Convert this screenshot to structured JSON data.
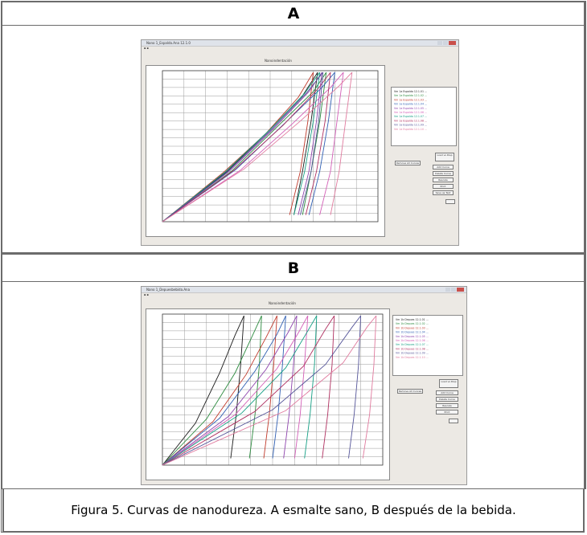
{
  "panel_a": {
    "label": "A",
    "window_title": "Nano 1_Espalda.Ana 12.1.0",
    "chart_title": "Nanoindentación",
    "legend_entries": [
      "Vm 1a Espalda 12.1.01 ...",
      "Vm 1a Espalda 12.1.02 ...",
      "Vm 1a Espalda 12.1.03 ...",
      "Vm 1a Espalda 12.1.04 ...",
      "Vm 1a Espalda 12.1.05 ...",
      "Vm 1a Espalda 12.1.06 ...",
      "Vm 1a Espalda 12.1.07 ...",
      "Vm 1a Espalda 12.1.08 ...",
      "Vm 1a Espalda 12.1.09 ...",
      "Vm 1a Espalda 12.1.10 ..."
    ],
    "buttons": [
      "Remove All Curves",
      "Add Curve",
      "Delete Curve",
      "Rescale",
      "Print",
      "Save as Text"
    ],
    "select_label": "Load vs Disp"
  },
  "panel_b": {
    "label": "B",
    "window_title": "Nano 1_Depuesbebida.Ana",
    "chart_title": "Nanoindentación",
    "legend_entries": [
      "Vm 1b Depues 12.1.01 ...",
      "Vm 1b Depues 12.1.02 ...",
      "Vm 1b Depues 12.1.03 ...",
      "Vm 1b Depues 12.1.04 ...",
      "Vm 1b Depues 12.1.05 ...",
      "Vm 1b Depues 12.1.06 ...",
      "Vm 1b Depues 12.1.07 ...",
      "Vm 1b Depues 12.1.08 ...",
      "Vm 1b Depues 12.1.09 ...",
      "Vm 1b Depues 12.1.10 ..."
    ],
    "buttons": [
      "Remove All Curves",
      "Add Curve",
      "Delete Curve",
      "Rescale",
      "Print"
    ],
    "select_label": "Load vs Disp"
  },
  "caption": "Figura 5. Curvas de nanodureza. A esmalte sano, B después de la bebida.",
  "colors": {
    "curve_colors": [
      "#1a1a1a",
      "#2b8a3e",
      "#c0392b",
      "#2f5fb3",
      "#8e44ad",
      "#d35fb7",
      "#16a085",
      "#b03060",
      "#555599",
      "#e07a9e"
    ]
  },
  "chart_data": [
    {
      "type": "line",
      "panel": "A",
      "xlim": [
        0,
        1000
      ],
      "ylim": [
        0,
        18000
      ],
      "series": [
        {
          "loading": [
            [
              0,
              0
            ],
            [
              300,
              6000
            ],
            [
              500,
              11000
            ],
            [
              650,
              15000
            ],
            [
              720,
              17800
            ]
          ],
          "unloading": [
            [
              720,
              17800
            ],
            [
              690,
              12000
            ],
            [
              650,
              6000
            ],
            [
              610,
              800
            ]
          ]
        },
        {
          "loading": [
            [
              0,
              0
            ],
            [
              320,
              6000
            ],
            [
              540,
              11500
            ],
            [
              700,
              15500
            ],
            [
              760,
              17800
            ]
          ],
          "unloading": [
            [
              760,
              17800
            ],
            [
              730,
              12000
            ],
            [
              690,
              6000
            ],
            [
              650,
              800
            ]
          ]
        },
        {
          "loading": [
            [
              0,
              0
            ],
            [
              280,
              5800
            ],
            [
              480,
              10500
            ],
            [
              630,
              14800
            ],
            [
              700,
              17800
            ]
          ],
          "unloading": [
            [
              700,
              17800
            ],
            [
              675,
              12000
            ],
            [
              640,
              6000
            ],
            [
              590,
              800
            ]
          ]
        },
        {
          "loading": [
            [
              0,
              0
            ],
            [
              340,
              6200
            ],
            [
              570,
              11800
            ],
            [
              740,
              16000
            ],
            [
              800,
              17800
            ]
          ],
          "unloading": [
            [
              800,
              17800
            ],
            [
              770,
              12000
            ],
            [
              730,
              6000
            ],
            [
              680,
              800
            ]
          ]
        },
        {
          "loading": [
            [
              0,
              0
            ],
            [
              310,
              6000
            ],
            [
              520,
              11200
            ],
            [
              680,
              15500
            ],
            [
              740,
              17800
            ]
          ],
          "unloading": [
            [
              740,
              17800
            ],
            [
              715,
              12000
            ],
            [
              680,
              6000
            ],
            [
              630,
              800
            ]
          ]
        },
        {
          "loading": [
            [
              0,
              0
            ],
            [
              360,
              6100
            ],
            [
              600,
              11600
            ],
            [
              780,
              16000
            ],
            [
              840,
              17800
            ]
          ],
          "unloading": [
            [
              840,
              17800
            ],
            [
              810,
              12000
            ],
            [
              780,
              6000
            ],
            [
              730,
              800
            ]
          ]
        },
        {
          "loading": [
            [
              0,
              0
            ],
            [
              290,
              5900
            ],
            [
              500,
              11000
            ],
            [
              660,
              15300
            ],
            [
              730,
              17800
            ]
          ],
          "unloading": [
            [
              730,
              17800
            ],
            [
              700,
              12000
            ],
            [
              660,
              6000
            ],
            [
              610,
              800
            ]
          ]
        },
        {
          "loading": [
            [
              0,
              0
            ],
            [
              330,
              6100
            ],
            [
              560,
              11500
            ],
            [
              720,
              15800
            ],
            [
              780,
              17800
            ]
          ],
          "unloading": [
            [
              780,
              17800
            ],
            [
              755,
              12000
            ],
            [
              715,
              6000
            ],
            [
              665,
              800
            ]
          ]
        },
        {
          "loading": [
            [
              0,
              0
            ],
            [
              300,
              5900
            ],
            [
              510,
              11100
            ],
            [
              670,
              15400
            ],
            [
              745,
              17800
            ]
          ],
          "unloading": [
            [
              745,
              17800
            ],
            [
              725,
              12000
            ],
            [
              690,
              6000
            ],
            [
              640,
              800
            ]
          ]
        },
        {
          "loading": [
            [
              0,
              0
            ],
            [
              380,
              6300
            ],
            [
              640,
              12000
            ],
            [
              820,
              16200
            ],
            [
              880,
              17800
            ]
          ],
          "unloading": [
            [
              880,
              17800
            ],
            [
              850,
              12000
            ],
            [
              820,
              6000
            ],
            [
              780,
              800
            ]
          ]
        }
      ]
    },
    {
      "type": "line",
      "panel": "B",
      "xlim": [
        0,
        1000
      ],
      "ylim": [
        0,
        18000
      ],
      "series": [
        {
          "loading": [
            [
              0,
              0
            ],
            [
              150,
              5000
            ],
            [
              260,
              11000
            ],
            [
              330,
              15500
            ],
            [
              370,
              17800
            ]
          ],
          "unloading": [
            [
              370,
              17800
            ],
            [
              355,
              12000
            ],
            [
              335,
              6000
            ],
            [
              310,
              800
            ]
          ]
        },
        {
          "loading": [
            [
              0,
              0
            ],
            [
              200,
              5500
            ],
            [
              330,
              11000
            ],
            [
              410,
              15500
            ],
            [
              450,
              17800
            ]
          ],
          "unloading": [
            [
              450,
              17800
            ],
            [
              440,
              12000
            ],
            [
              420,
              6000
            ],
            [
              395,
              800
            ]
          ]
        },
        {
          "loading": [
            [
              0,
              0
            ],
            [
              230,
              5200
            ],
            [
              380,
              10800
            ],
            [
              470,
              15200
            ],
            [
              520,
              17800
            ]
          ],
          "unloading": [
            [
              520,
              17800
            ],
            [
              505,
              12000
            ],
            [
              485,
              6000
            ],
            [
              460,
              800
            ]
          ]
        },
        {
          "loading": [
            [
              0,
              0
            ],
            [
              260,
              5600
            ],
            [
              420,
              11200
            ],
            [
              520,
              15600
            ],
            [
              560,
              17800
            ]
          ],
          "unloading": [
            [
              560,
              17800
            ],
            [
              545,
              12000
            ],
            [
              525,
              6000
            ],
            [
              500,
              800
            ]
          ]
        },
        {
          "loading": [
            [
              0,
              0
            ],
            [
              300,
              5800
            ],
            [
              470,
              11400
            ],
            [
              570,
              15800
            ],
            [
              610,
              17800
            ]
          ],
          "unloading": [
            [
              610,
              17800
            ],
            [
              595,
              12000
            ],
            [
              575,
              6000
            ],
            [
              550,
              800
            ]
          ]
        },
        {
          "loading": [
            [
              0,
              0
            ],
            [
              330,
              6000
            ],
            [
              520,
              11500
            ],
            [
              620,
              15900
            ],
            [
              660,
              17800
            ]
          ],
          "unloading": [
            [
              660,
              17800
            ],
            [
              645,
              12000
            ],
            [
              625,
              6000
            ],
            [
              600,
              800
            ]
          ]
        },
        {
          "loading": [
            [
              0,
              0
            ],
            [
              360,
              6200
            ],
            [
              560,
              11600
            ],
            [
              660,
              16000
            ],
            [
              700,
              17800
            ]
          ],
          "unloading": [
            [
              700,
              17800
            ],
            [
              690,
              12000
            ],
            [
              670,
              6000
            ],
            [
              645,
              800
            ]
          ]
        },
        {
          "loading": [
            [
              0,
              0
            ],
            [
              420,
              6400
            ],
            [
              640,
              11800
            ],
            [
              740,
              16200
            ],
            [
              780,
              17800
            ]
          ],
          "unloading": [
            [
              780,
              17800
            ],
            [
              770,
              12000
            ],
            [
              750,
              6000
            ],
            [
              725,
              800
            ]
          ]
        },
        {
          "loading": [
            [
              0,
              0
            ],
            [
              500,
              6600
            ],
            [
              740,
              12000
            ],
            [
              860,
              16400
            ],
            [
              900,
              17800
            ]
          ],
          "unloading": [
            [
              900,
              17800
            ],
            [
              890,
              12000
            ],
            [
              870,
              6000
            ],
            [
              845,
              800
            ]
          ]
        },
        {
          "loading": [
            [
              0,
              0
            ],
            [
              560,
              6500
            ],
            [
              820,
              12200
            ],
            [
              930,
              16500
            ],
            [
              970,
              17800
            ]
          ],
          "unloading": [
            [
              970,
              17800
            ],
            [
              960,
              12000
            ],
            [
              940,
              6000
            ],
            [
              910,
              800
            ]
          ]
        }
      ]
    }
  ]
}
